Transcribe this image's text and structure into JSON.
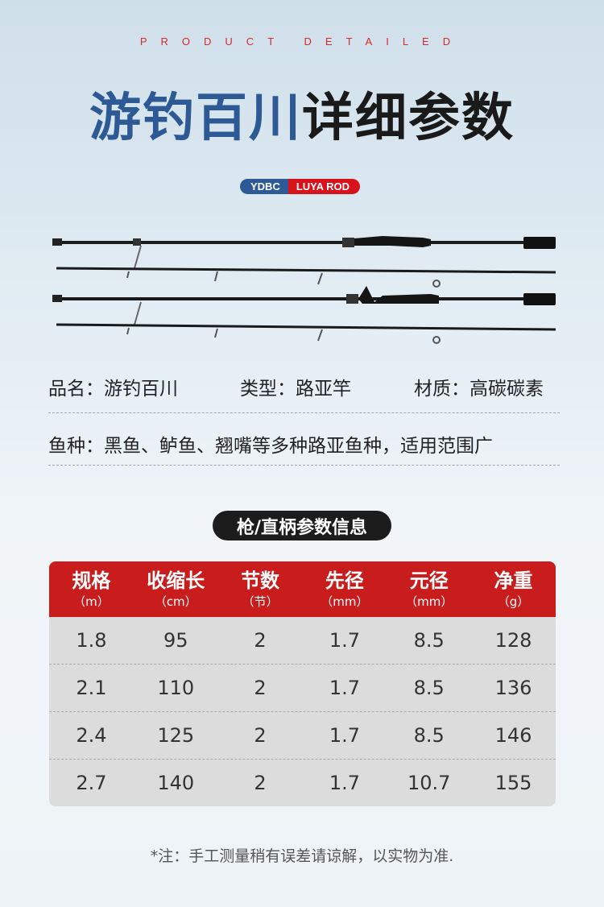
{
  "header": {
    "subtitle": "PRODUCT DETAILED",
    "title_blue": "游钓百川",
    "title_black": "详细参数",
    "badge_left": "YDBC",
    "badge_right": "LUYA ROD"
  },
  "colors": {
    "blue": "#2d5a94",
    "red": "#c91d1d",
    "badge_red": "#d8121a"
  },
  "info": {
    "name": "品名：游钓百川",
    "type": "类型：路亚竿",
    "material": "材质：高碳碳素",
    "fish": "鱼种：黑鱼、鲈鱼、翘嘴等多种路亚鱼种，适用范围广"
  },
  "section_title": "枪/直柄参数信息",
  "table": {
    "headers": [
      {
        "title": "规格",
        "unit": "（m）"
      },
      {
        "title": "收缩长",
        "unit": "（cm）"
      },
      {
        "title": "节数",
        "unit": "（节）"
      },
      {
        "title": "先径",
        "unit": "（mm）"
      },
      {
        "title": "元径",
        "unit": "（mm）"
      },
      {
        "title": "净重",
        "unit": "（g）"
      }
    ],
    "rows": [
      [
        "1.8",
        "95",
        "2",
        "1.7",
        "8.5",
        "128"
      ],
      [
        "2.1",
        "110",
        "2",
        "1.7",
        "8.5",
        "136"
      ],
      [
        "2.4",
        "125",
        "2",
        "1.7",
        "8.5",
        "146"
      ],
      [
        "2.7",
        "140",
        "2",
        "1.7",
        "10.7",
        "155"
      ]
    ]
  },
  "note": "*注：手工测量稍有误差请谅解，以实物为准."
}
